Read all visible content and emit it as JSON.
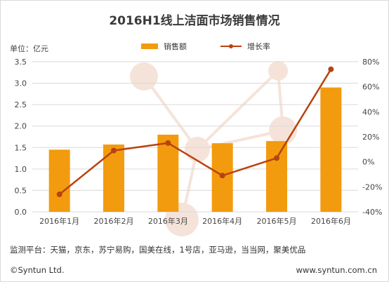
{
  "unit_label": "单位：亿元",
  "footer": {
    "platforms": "监测平台：天猫，京东，苏宁易购，国美在线，1号店，亚马逊，当当网，聚美优品",
    "copyright": "©Syntun Ltd.",
    "website": "www.syntun.com.cn"
  },
  "colors": {
    "bar": "#F39B0E",
    "line": "#B8430F",
    "grid": "#d9d9d9",
    "watermark": "#F5E3DA"
  },
  "chart_data": {
    "type": "bar",
    "title": "2016H1线上洁面市场销售情况",
    "categories": [
      "2016年1月",
      "2016年2月",
      "2016年3月",
      "2016年4月",
      "2016年5月",
      "2016年6月"
    ],
    "series": [
      {
        "name": "销售额",
        "type": "bar",
        "axis": "left",
        "values": [
          1.45,
          1.57,
          1.8,
          1.6,
          1.65,
          2.9
        ]
      },
      {
        "name": "增长率",
        "type": "line",
        "axis": "right",
        "unit": "%",
        "values": [
          -26,
          9,
          15,
          -11,
          3,
          74
        ]
      }
    ],
    "y_left": {
      "range": [
        0,
        3.5
      ],
      "ticks": [
        "0.0",
        "0.5",
        "1.0",
        "1.5",
        "2.0",
        "2.5",
        "3.0",
        "3.5"
      ]
    },
    "y_right": {
      "range": [
        -40,
        80
      ],
      "ticks": [
        "-40%",
        "-20%",
        "0%",
        "20%",
        "40%",
        "60%",
        "80%"
      ]
    },
    "grid": true,
    "legend_position": "top-center"
  }
}
